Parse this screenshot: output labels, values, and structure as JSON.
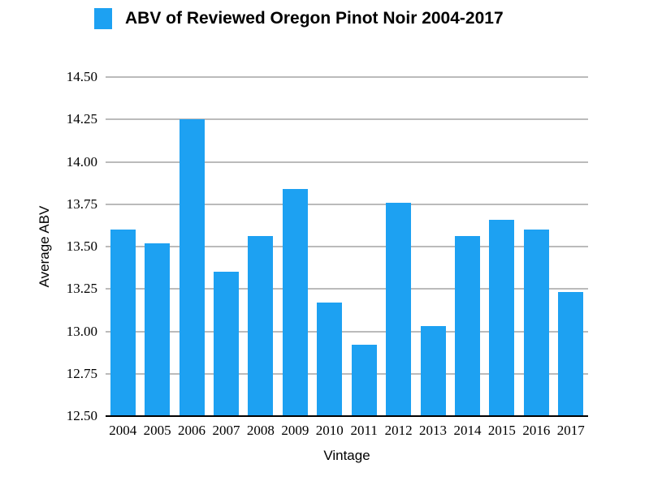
{
  "chart_data": {
    "type": "bar",
    "title": "ABV of Reviewed Oregon Pinot Noir 2004-2017",
    "categories": [
      "2004",
      "2005",
      "2006",
      "2007",
      "2008",
      "2009",
      "2010",
      "2011",
      "2012",
      "2013",
      "2014",
      "2015",
      "2016",
      "2017"
    ],
    "values": [
      13.6,
      13.52,
      14.25,
      13.35,
      13.56,
      13.84,
      13.17,
      12.92,
      13.76,
      13.03,
      13.56,
      13.66,
      13.6,
      13.23
    ],
    "xlabel": "Vintage",
    "ylabel": "Average ABV",
    "ylim": [
      12.5,
      14.5
    ],
    "ytick_step": 0.25,
    "ytick_decimals": 2,
    "grid": true,
    "legend_position": "top",
    "bar_color": "#1DA1F2",
    "gridline_color": "#BBBBBB",
    "axis_line_color": "#000000",
    "text_color": "#000000"
  }
}
